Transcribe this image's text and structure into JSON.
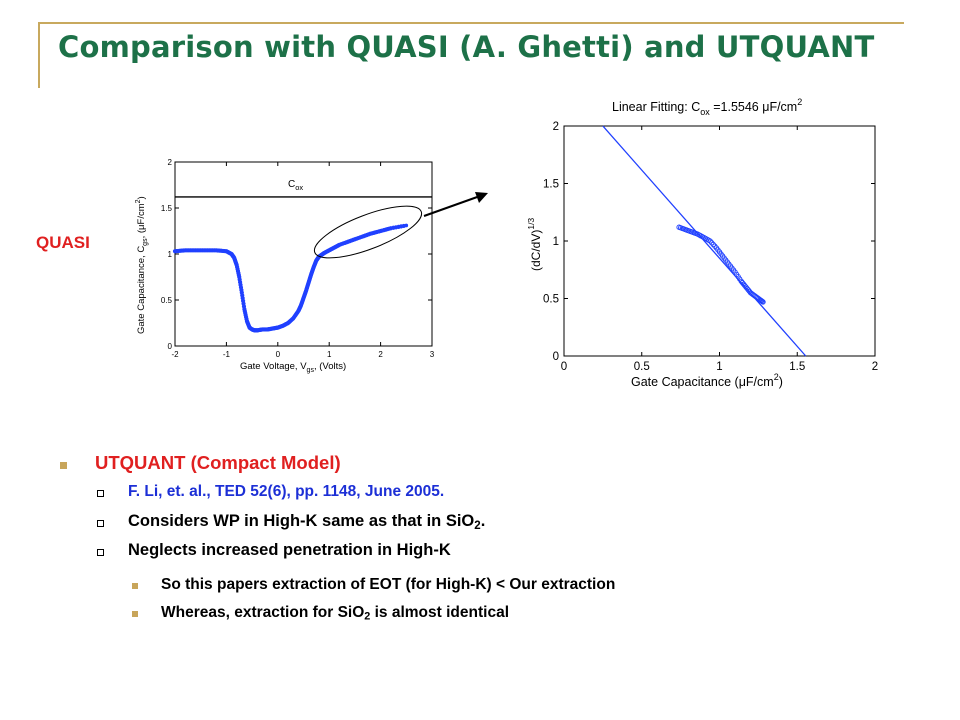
{
  "slide": {
    "title": "Comparison with QUASI (A. Ghetti) and UTQUANT",
    "side_label": "QUASI"
  },
  "colors": {
    "title": "#1d7148",
    "rule": "#c8a95e",
    "curve": "#2040ff",
    "red": "#e02020",
    "blue": "#1c2fd6",
    "bullet_marker": "#c8a55a"
  },
  "chart_data": [
    {
      "type": "scatter",
      "ylabel_main": "Gate Capacitance, C",
      "ylabel_sub": "gs",
      "ylabel_tail": ", (",
      "ylabel_mu": "μ",
      "ylabel_unit": "F/cm",
      "ylabel_sup": "2",
      "ylabel_close": ")",
      "xlabel_main": "Gate Voltage, V",
      "xlabel_sub": "gs",
      "xlabel_unit": ", (Volts)",
      "annotation_main": "C",
      "annotation_sub": "ox",
      "annotation_value": 1.62,
      "xlim": [
        -2,
        3
      ],
      "ylim": [
        0,
        2
      ],
      "xticks": [
        "-2",
        "-1",
        "0",
        "1",
        "2",
        "3"
      ],
      "yticks": [
        "0",
        "0.5",
        "1",
        "1.5",
        "2"
      ],
      "x": [
        -2.0,
        -1.8,
        -1.6,
        -1.4,
        -1.2,
        -1.0,
        -0.9,
        -0.85,
        -0.8,
        -0.75,
        -0.7,
        -0.65,
        -0.6,
        -0.55,
        -0.5,
        -0.45,
        -0.4,
        -0.3,
        -0.2,
        -0.1,
        0.0,
        0.1,
        0.2,
        0.3,
        0.4,
        0.45,
        0.5,
        0.55,
        0.6,
        0.65,
        0.7,
        0.75,
        0.8,
        0.85,
        0.9,
        1.0,
        1.1,
        1.2,
        1.4,
        1.6,
        1.8,
        2.0,
        2.2,
        2.5
      ],
      "y": [
        1.03,
        1.04,
        1.04,
        1.04,
        1.04,
        1.03,
        1.0,
        0.96,
        0.88,
        0.75,
        0.58,
        0.4,
        0.27,
        0.2,
        0.18,
        0.17,
        0.17,
        0.18,
        0.18,
        0.19,
        0.2,
        0.22,
        0.25,
        0.3,
        0.38,
        0.44,
        0.52,
        0.6,
        0.69,
        0.78,
        0.86,
        0.93,
        0.97,
        0.99,
        1.01,
        1.04,
        1.07,
        1.1,
        1.14,
        1.18,
        1.22,
        1.25,
        1.28,
        1.31
      ]
    },
    {
      "type": "scatter",
      "title_main": "Linear Fitting: C",
      "title_sub": "ox",
      "title_value": " =1.5546 ",
      "title_mu": "μ",
      "title_unit": "F/cm",
      "title_sup": "2",
      "xlabel_main": "Gate Capacitance (",
      "xlabel_mu": "μ",
      "xlabel_unit": "F/cm",
      "xlabel_sup": "2",
      "xlabel_close": ")",
      "ylabel_main": "(dC/dV)",
      "ylabel_sup": "1/3",
      "xlim": [
        0,
        2
      ],
      "ylim": [
        0,
        2
      ],
      "xticks": [
        "0",
        "0.5",
        "1",
        "1.5",
        "2"
      ],
      "yticks": [
        "0",
        "0.5",
        "1",
        "1.5",
        "2"
      ],
      "fit_line": {
        "x": [
          0.25,
          1.5546
        ],
        "y": [
          2.0,
          0.0
        ]
      },
      "x": [
        0.74,
        0.78,
        0.82,
        0.86,
        0.9,
        0.94,
        0.98,
        1.02,
        1.06,
        1.1,
        1.14,
        1.17,
        1.2,
        1.23,
        1.26,
        1.28
      ],
      "y": [
        1.12,
        1.1,
        1.08,
        1.06,
        1.03,
        1.0,
        0.94,
        0.87,
        0.8,
        0.73,
        0.65,
        0.6,
        0.55,
        0.52,
        0.49,
        0.47
      ]
    }
  ],
  "bullets": {
    "item1": "UTQUANT (Compact Model)",
    "sub1": "F. Li, et. al., TED 52(6), pp. 1148, June 2005.",
    "sub2_pre": "Considers WP in High-K same as that in SiO",
    "sub2_sub": "2",
    "sub2_post": ".",
    "sub3": "Neglects increased penetration in High-K",
    "subsub1": "So this papers extraction of EOT (for High-K) < Our extraction",
    "subsub2_pre": "Whereas, extraction for SiO",
    "subsub2_sub": "2",
    "subsub2_post": " is almost identical"
  }
}
